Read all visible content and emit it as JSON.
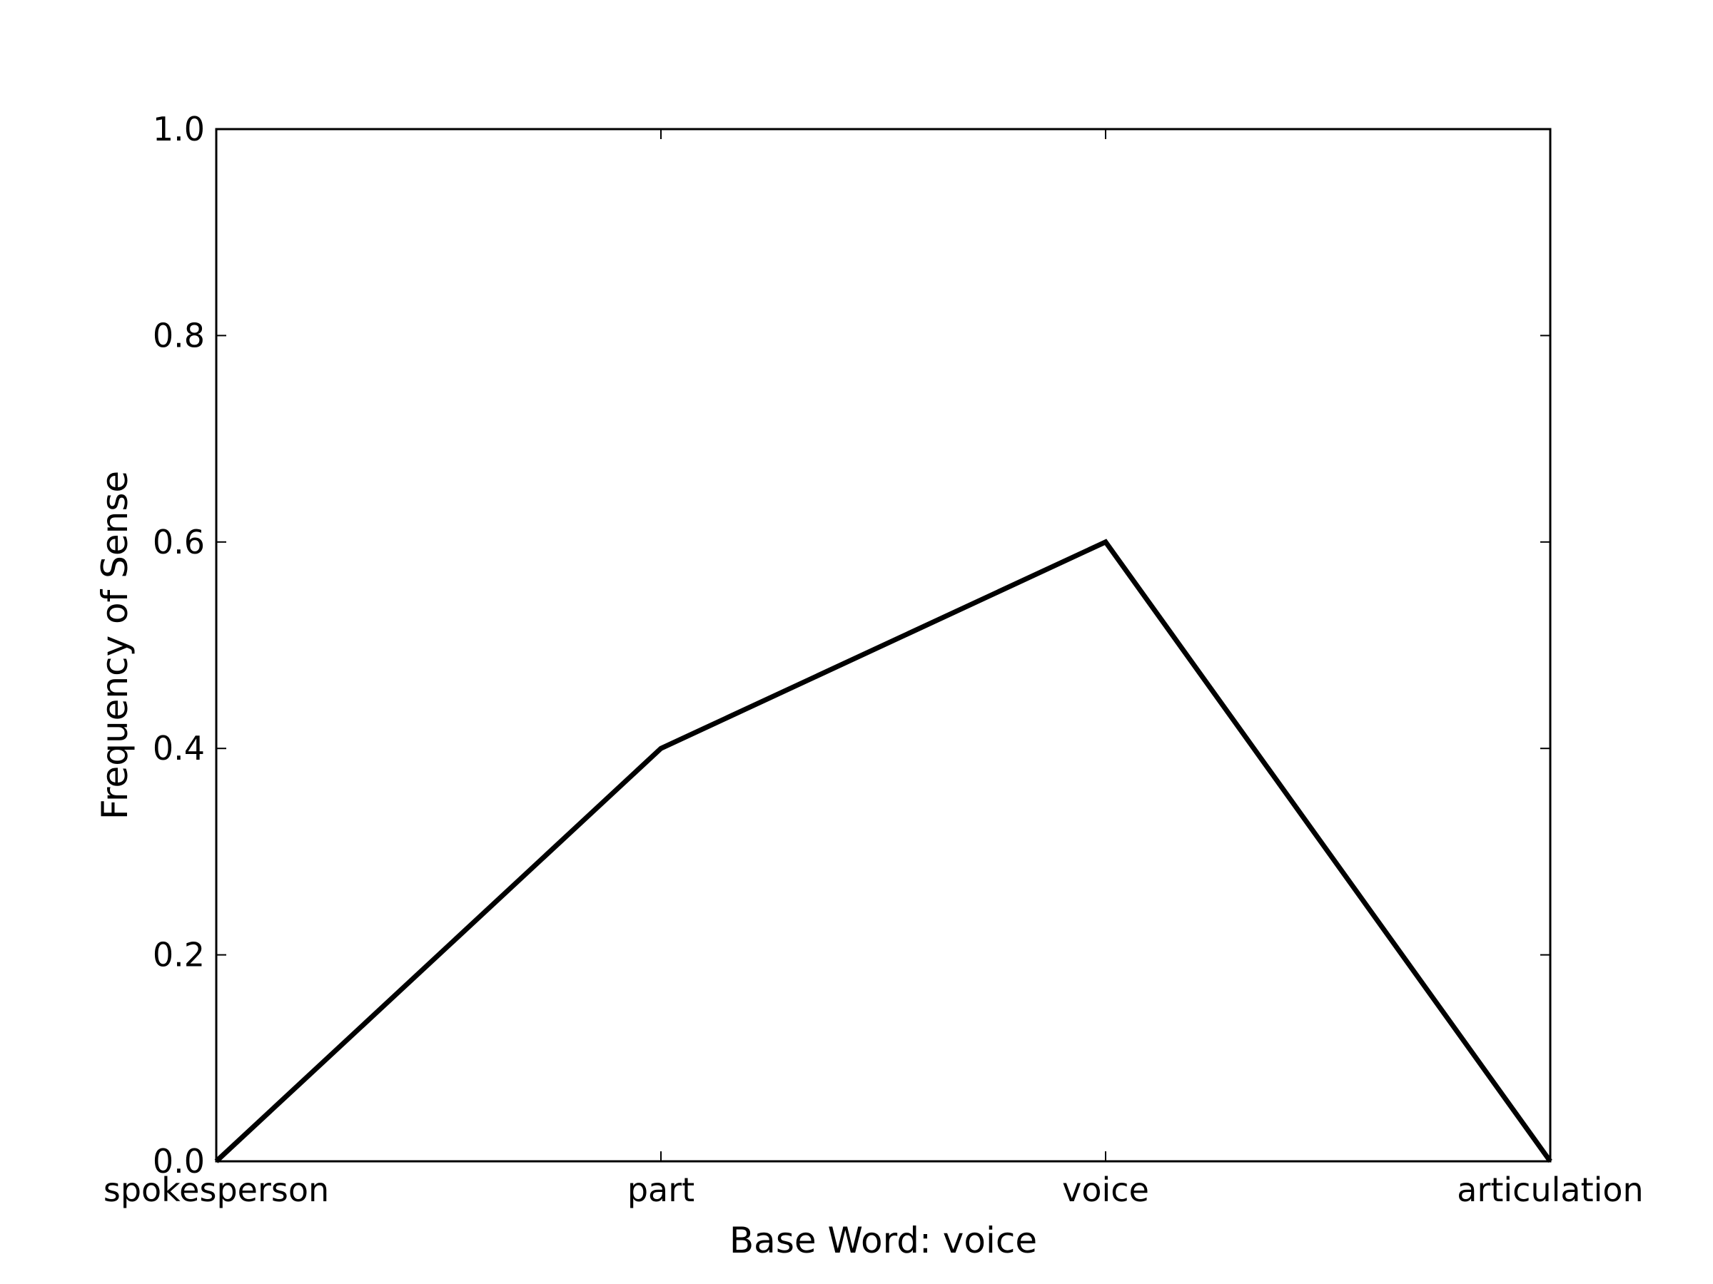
{
  "chart_data": {
    "type": "line",
    "categories": [
      "spokesperson",
      "part",
      "voice",
      "articulation"
    ],
    "values": [
      0.0,
      0.4,
      0.6,
      0.0
    ],
    "title": "",
    "xlabel": "Base Word: voice",
    "ylabel": "Frequency of Sense",
    "ylim": [
      0,
      1.0
    ],
    "yticks": [
      "0.0",
      "0.2",
      "0.4",
      "0.6",
      "0.8",
      "1.0"
    ],
    "grid": false,
    "line_color": "#000000"
  }
}
